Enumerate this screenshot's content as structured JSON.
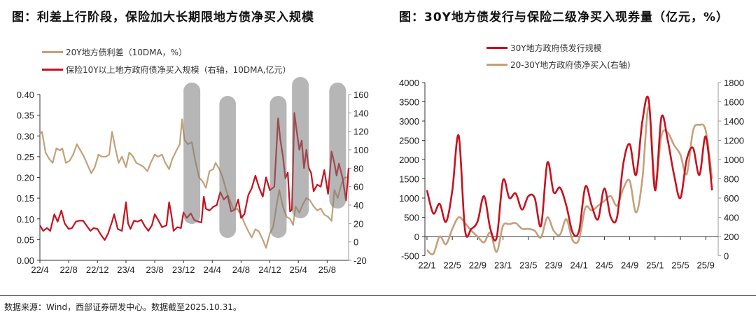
{
  "footer": {
    "source": "数据来源：Wind，西部证券研发中心。数据截至2025.10.31。"
  },
  "chart_data": [
    {
      "type": "line",
      "title": "图：利差上行阶段，保险加大长期限地方债净买入规模",
      "colors": {
        "spread": "#c4a07a",
        "buy": "#c8101e",
        "highlight": "#7a7a7a"
      },
      "xlim": [
        "2022-04-01",
        "2025-10-31"
      ],
      "x_ticks": [
        "22/4",
        "22/8",
        "22/12",
        "23/4",
        "23/8",
        "23/12",
        "24/4",
        "24/8",
        "24/12",
        "25/4",
        "25/8"
      ],
      "ylim_left": [
        0,
        0.4
      ],
      "y_ticks_left": [
        "0.00",
        "0.05",
        "0.10",
        "0.15",
        "0.20",
        "0.25",
        "0.30",
        "0.35",
        "0.40"
      ],
      "ylim_right": [
        -20,
        160
      ],
      "y_ticks_right": [
        "-20",
        "0",
        "20",
        "40",
        "60",
        "80",
        "100",
        "120",
        "140",
        "160"
      ],
      "grid": false,
      "legend_placement": "top-left",
      "highlight_periods": [
        [
          "2023-12-01",
          "2024-02-10"
        ],
        [
          "2024-05-01",
          "2024-07-10"
        ],
        [
          "2024-12-01",
          "2025-02-10"
        ],
        [
          "2025-03-05",
          "2025-05-15"
        ],
        [
          "2025-08-10",
          "2025-10-20"
        ]
      ],
      "series": [
        {
          "name": "20Y地方债利差（10DMA，%）",
          "axis": "left",
          "points": [
            [
              "2022-04-01",
              0.305
            ],
            [
              "2022-04-10",
              0.31
            ],
            [
              "2022-04-25",
              0.26
            ],
            [
              "2022-05-10",
              0.245
            ],
            [
              "2022-05-25",
              0.235
            ],
            [
              "2022-06-10",
              0.27
            ],
            [
              "2022-06-25",
              0.265
            ],
            [
              "2022-07-05",
              0.27
            ],
            [
              "2022-07-20",
              0.235
            ],
            [
              "2022-08-05",
              0.24
            ],
            [
              "2022-08-20",
              0.255
            ],
            [
              "2022-09-05",
              0.28
            ],
            [
              "2022-09-20",
              0.265
            ],
            [
              "2022-10-05",
              0.25
            ],
            [
              "2022-10-20",
              0.23
            ],
            [
              "2022-11-05",
              0.21
            ],
            [
              "2022-11-20",
              0.225
            ],
            [
              "2022-12-05",
              0.255
            ],
            [
              "2022-12-20",
              0.25
            ],
            [
              "2023-01-05",
              0.25
            ],
            [
              "2023-01-20",
              0.255
            ],
            [
              "2023-02-01",
              0.31
            ],
            [
              "2023-02-15",
              0.27
            ],
            [
              "2023-03-01",
              0.235
            ],
            [
              "2023-03-15",
              0.25
            ],
            [
              "2023-04-01",
              0.225
            ],
            [
              "2023-04-15",
              0.26
            ],
            [
              "2023-05-01",
              0.25
            ],
            [
              "2023-05-15",
              0.235
            ],
            [
              "2023-06-01",
              0.23
            ],
            [
              "2023-06-15",
              0.225
            ],
            [
              "2023-07-01",
              0.215
            ],
            [
              "2023-07-15",
              0.235
            ],
            [
              "2023-08-01",
              0.255
            ],
            [
              "2023-08-15",
              0.25
            ],
            [
              "2023-09-01",
              0.255
            ],
            [
              "2023-09-15",
              0.235
            ],
            [
              "2023-10-01",
              0.22
            ],
            [
              "2023-10-15",
              0.245
            ],
            [
              "2023-11-01",
              0.265
            ],
            [
              "2023-11-15",
              0.28
            ],
            [
              "2023-11-25",
              0.34
            ],
            [
              "2023-12-05",
              0.29
            ],
            [
              "2023-12-20",
              0.28
            ],
            [
              "2024-01-05",
              0.285
            ],
            [
              "2024-01-20",
              0.24
            ],
            [
              "2024-02-05",
              0.2
            ],
            [
              "2024-02-20",
              0.19
            ],
            [
              "2024-03-05",
              0.175
            ],
            [
              "2024-03-20",
              0.215
            ],
            [
              "2024-04-05",
              0.22
            ],
            [
              "2024-04-15",
              0.235
            ],
            [
              "2024-05-01",
              0.22
            ],
            [
              "2024-05-15",
              0.2
            ],
            [
              "2024-06-01",
              0.165
            ],
            [
              "2024-06-15",
              0.145
            ],
            [
              "2024-07-01",
              0.12
            ],
            [
              "2024-07-15",
              0.125
            ],
            [
              "2024-08-01",
              0.11
            ],
            [
              "2024-08-15",
              0.09
            ],
            [
              "2024-09-01",
              0.07
            ],
            [
              "2024-09-15",
              0.055
            ],
            [
              "2024-10-01",
              0.075
            ],
            [
              "2024-10-15",
              0.07
            ],
            [
              "2024-11-01",
              0.05
            ],
            [
              "2024-11-15",
              0.03
            ],
            [
              "2024-12-01",
              0.065
            ],
            [
              "2024-12-15",
              0.08
            ],
            [
              "2025-01-01",
              0.14
            ],
            [
              "2025-01-10",
              0.17
            ],
            [
              "2025-01-25",
              0.13
            ],
            [
              "2025-02-10",
              0.105
            ],
            [
              "2025-02-25",
              0.1
            ],
            [
              "2025-03-10",
              0.085
            ],
            [
              "2025-03-20",
              0.13
            ],
            [
              "2025-04-05",
              0.115
            ],
            [
              "2025-04-20",
              0.135
            ],
            [
              "2025-05-05",
              0.15
            ],
            [
              "2025-05-20",
              0.145
            ],
            [
              "2025-06-05",
              0.13
            ],
            [
              "2025-06-20",
              0.12
            ],
            [
              "2025-07-05",
              0.125
            ],
            [
              "2025-07-20",
              0.11
            ],
            [
              "2025-08-05",
              0.105
            ],
            [
              "2025-08-20",
              0.095
            ],
            [
              "2025-09-01",
              0.17
            ],
            [
              "2025-09-15",
              0.15
            ],
            [
              "2025-10-01",
              0.185
            ],
            [
              "2025-10-15",
              0.2
            ],
            [
              "2025-10-31",
              0.2
            ]
          ]
        },
        {
          "name": "保险10Y以上地方政府债净买入规模（右轴，10DMA,亿元）",
          "axis": "right",
          "points": [
            [
              "2022-04-01",
              18
            ],
            [
              "2022-04-15",
              12
            ],
            [
              "2022-05-01",
              15
            ],
            [
              "2022-05-15",
              12
            ],
            [
              "2022-06-01",
              30
            ],
            [
              "2022-06-15",
              22
            ],
            [
              "2022-07-01",
              34
            ],
            [
              "2022-07-15",
              20
            ],
            [
              "2022-08-01",
              14
            ],
            [
              "2022-08-15",
              15
            ],
            [
              "2022-09-01",
              22
            ],
            [
              "2022-09-15",
              23
            ],
            [
              "2022-10-01",
              23
            ],
            [
              "2022-10-15",
              18
            ],
            [
              "2022-11-01",
              12
            ],
            [
              "2022-11-15",
              15
            ],
            [
              "2022-12-01",
              14
            ],
            [
              "2022-12-15",
              8
            ],
            [
              "2023-01-01",
              2
            ],
            [
              "2023-01-15",
              9
            ],
            [
              "2023-02-01",
              22
            ],
            [
              "2023-02-10",
              30
            ],
            [
              "2023-02-25",
              14
            ],
            [
              "2023-03-15",
              12
            ],
            [
              "2023-04-01",
              43
            ],
            [
              "2023-04-10",
              20
            ],
            [
              "2023-04-20",
              14
            ],
            [
              "2023-05-05",
              23
            ],
            [
              "2023-05-20",
              22
            ],
            [
              "2023-06-05",
              24
            ],
            [
              "2023-06-20",
              17
            ],
            [
              "2023-07-05",
              12
            ],
            [
              "2023-07-20",
              18
            ],
            [
              "2023-08-01",
              30
            ],
            [
              "2023-08-15",
              24
            ],
            [
              "2023-09-01",
              16
            ],
            [
              "2023-09-20",
              18
            ],
            [
              "2023-10-01",
              43
            ],
            [
              "2023-10-10",
              30
            ],
            [
              "2023-10-20",
              12
            ],
            [
              "2023-11-05",
              16
            ],
            [
              "2023-11-20",
              15
            ],
            [
              "2023-12-01",
              32
            ],
            [
              "2023-12-15",
              26
            ],
            [
              "2024-01-01",
              31
            ],
            [
              "2024-01-15",
              24
            ],
            [
              "2024-02-01",
              22
            ],
            [
              "2024-02-15",
              21
            ],
            [
              "2024-02-25",
              49
            ],
            [
              "2024-03-05",
              36
            ],
            [
              "2024-03-20",
              34
            ],
            [
              "2024-04-05",
              38
            ],
            [
              "2024-04-20",
              40
            ],
            [
              "2024-05-05",
              54
            ],
            [
              "2024-05-20",
              46
            ],
            [
              "2024-06-05",
              50
            ],
            [
              "2024-06-20",
              33
            ],
            [
              "2024-07-05",
              35
            ],
            [
              "2024-07-20",
              46
            ],
            [
              "2024-08-01",
              26
            ],
            [
              "2024-08-15",
              30
            ],
            [
              "2024-09-01",
              51
            ],
            [
              "2024-09-15",
              58
            ],
            [
              "2024-10-01",
              72
            ],
            [
              "2024-10-15",
              60
            ],
            [
              "2024-11-01",
              49
            ],
            [
              "2024-11-15",
              70
            ],
            [
              "2024-12-01",
              56
            ],
            [
              "2024-12-20",
              60
            ],
            [
              "2025-01-05",
              134
            ],
            [
              "2025-01-15",
              110
            ],
            [
              "2025-01-25",
              94
            ],
            [
              "2025-02-05",
              69
            ],
            [
              "2025-02-15",
              75
            ],
            [
              "2025-02-25",
              33
            ],
            [
              "2025-03-05",
              35
            ],
            [
              "2025-03-15",
              140
            ],
            [
              "2025-03-25",
              120
            ],
            [
              "2025-04-05",
              100
            ],
            [
              "2025-04-15",
              110
            ],
            [
              "2025-04-25",
              80
            ],
            [
              "2025-05-05",
              100
            ],
            [
              "2025-05-15",
              80
            ],
            [
              "2025-05-25",
              75
            ],
            [
              "2025-06-05",
              55
            ],
            [
              "2025-06-20",
              62
            ],
            [
              "2025-07-05",
              60
            ],
            [
              "2025-07-20",
              78
            ],
            [
              "2025-08-05",
              52
            ],
            [
              "2025-08-20",
              98
            ],
            [
              "2025-09-01",
              85
            ],
            [
              "2025-09-10",
              72
            ],
            [
              "2025-09-20",
              85
            ],
            [
              "2025-10-05",
              70
            ],
            [
              "2025-10-20",
              45
            ],
            [
              "2025-10-31",
              80
            ]
          ]
        }
      ]
    },
    {
      "type": "line",
      "title": "图：30Y地方债发行与保险二级净买入现券量（亿元，%）",
      "colors": {
        "issuance": "#c8101e",
        "netbuy": "#c4a07a"
      },
      "x": [
        "22/1",
        "22/2",
        "22/3",
        "22/4",
        "22/5",
        "22/6",
        "22/7",
        "22/8",
        "22/9",
        "22/10",
        "22/11",
        "22/12",
        "23/1",
        "23/2",
        "23/3",
        "23/4",
        "23/5",
        "23/6",
        "23/7",
        "23/8",
        "23/9",
        "23/10",
        "23/11",
        "23/12",
        "24/1",
        "24/2",
        "24/3",
        "24/4",
        "24/5",
        "24/6",
        "24/7",
        "24/8",
        "24/9",
        "24/10",
        "24/11",
        "24/12",
        "25/1",
        "25/2",
        "25/3",
        "25/4",
        "25/5",
        "25/6",
        "25/7",
        "25/8",
        "25/9",
        "25/10"
      ],
      "x_ticks": [
        "22/1",
        "22/5",
        "22/9",
        "23/1",
        "23/5",
        "23/9",
        "24/1",
        "24/5",
        "24/9",
        "25/1",
        "25/5",
        "25/9"
      ],
      "ylim_left": [
        -500,
        4000
      ],
      "y_ticks_left": [
        "-500",
        "0",
        "500",
        "1000",
        "1500",
        "2000",
        "2500",
        "3000",
        "3500",
        "4000"
      ],
      "ylim_right": [
        0,
        1800
      ],
      "y_ticks_right": [
        "0",
        "200",
        "400",
        "600",
        "800",
        "1000",
        "1200",
        "1400",
        "1600",
        "1800"
      ],
      "grid": false,
      "legend_placement": "top-center",
      "series": [
        {
          "name": "30Y地方政府债发行规模",
          "axis": "left",
          "values": [
            1200,
            600,
            850,
            380,
            1200,
            2620,
            170,
            200,
            400,
            1050,
            200,
            -30,
            1460,
            1000,
            1120,
            700,
            1050,
            1000,
            280,
            1920,
            1150,
            1270,
            800,
            100,
            150,
            1300,
            800,
            450,
            1250,
            500,
            500,
            1900,
            2400,
            1600,
            3000,
            3550,
            1200,
            3100,
            2500,
            1600,
            1000,
            2000,
            2300,
            1600,
            2600,
            1200
          ]
        },
        {
          "name": "20-30Y地方政府债净买入(右轴)",
          "axis": "right",
          "values": [
            60,
            20,
            200,
            120,
            280,
            400,
            340,
            260,
            200,
            140,
            240,
            40,
            312,
            328,
            340,
            280,
            280,
            260,
            192,
            400,
            260,
            220,
            380,
            160,
            170,
            500,
            470,
            520,
            570,
            620,
            520,
            700,
            780,
            450,
            800,
            1550,
            750,
            1250,
            1280,
            1150,
            1050,
            850,
            1300,
            1360,
            1300,
            800
          ]
        }
      ]
    }
  ]
}
